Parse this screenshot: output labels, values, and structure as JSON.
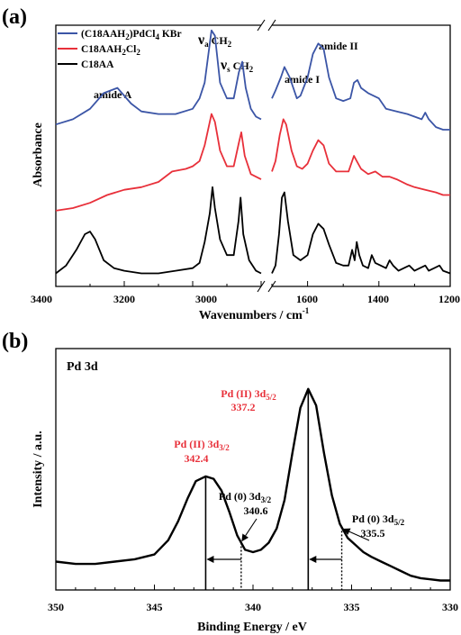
{
  "chart_data": [
    {
      "type": "line",
      "panel_label": "(a)",
      "xlabel": "Wavenumbers / cm",
      "xlabel_sup": "-1",
      "ylabel": "Absorbance",
      "x_segments": [
        [
          3400,
          2800
        ],
        [
          1700,
          1200
        ]
      ],
      "xticks_left": [
        "3400",
        "3200",
        "3000"
      ],
      "xticks_right": [
        "1600",
        "1400",
        "1200"
      ],
      "legend": [
        {
          "label_parts": [
            "(C18AAH",
            "2",
            ")PdCl",
            "4",
            " KBr"
          ],
          "color": "#3b55a6"
        },
        {
          "label_parts": [
            "C18AAH",
            "2",
            "Cl",
            "2",
            ""
          ],
          "color": "#e8303a"
        },
        {
          "label_parts": [
            "C18AA",
            "",
            "",
            "",
            ""
          ],
          "color": "#000000"
        }
      ],
      "annotations": {
        "amide_a": "amide A",
        "va_nu": "ν",
        "va_sub": "a",
        "va_group": " CH",
        "va_group_sub": "2",
        "vs_nu": "ν",
        "vs_sub": "s",
        "vs_group": " CH",
        "vs_group_sub": "2",
        "amide_1": "amide I",
        "amide_2": "amide II"
      },
      "series": [
        {
          "name": "(C18AAH2)PdCl4 KBr",
          "color": "#3b55a6",
          "left": [
            [
              3400,
              0.62
            ],
            [
              3350,
              0.64
            ],
            [
              3300,
              0.68
            ],
            [
              3260,
              0.74
            ],
            [
              3220,
              0.76
            ],
            [
              3180,
              0.7
            ],
            [
              3150,
              0.67
            ],
            [
              3100,
              0.66
            ],
            [
              3050,
              0.66
            ],
            [
              3000,
              0.68
            ],
            [
              2980,
              0.72
            ],
            [
              2965,
              0.78
            ],
            [
              2945,
              0.98
            ],
            [
              2935,
              0.96
            ],
            [
              2920,
              0.78
            ],
            [
              2900,
              0.72
            ],
            [
              2880,
              0.72
            ],
            [
              2865,
              0.82
            ],
            [
              2855,
              0.86
            ],
            [
              2845,
              0.76
            ],
            [
              2830,
              0.68
            ],
            [
              2815,
              0.65
            ],
            [
              2800,
              0.64
            ]
          ],
          "right": [
            [
              1700,
              0.72
            ],
            [
              1690,
              0.75
            ],
            [
              1675,
              0.8
            ],
            [
              1665,
              0.84
            ],
            [
              1650,
              0.8
            ],
            [
              1630,
              0.72
            ],
            [
              1620,
              0.73
            ],
            [
              1600,
              0.8
            ],
            [
              1585,
              0.89
            ],
            [
              1570,
              0.93
            ],
            [
              1555,
              0.91
            ],
            [
              1540,
              0.8
            ],
            [
              1520,
              0.72
            ],
            [
              1500,
              0.71
            ],
            [
              1480,
              0.72
            ],
            [
              1470,
              0.78
            ],
            [
              1460,
              0.79
            ],
            [
              1450,
              0.76
            ],
            [
              1430,
              0.74
            ],
            [
              1400,
              0.72
            ],
            [
              1380,
              0.68
            ],
            [
              1350,
              0.67
            ],
            [
              1320,
              0.66
            ],
            [
              1300,
              0.65
            ],
            [
              1280,
              0.64
            ],
            [
              1270,
              0.665
            ],
            [
              1260,
              0.64
            ],
            [
              1240,
              0.61
            ],
            [
              1220,
              0.6
            ],
            [
              1200,
              0.6
            ]
          ]
        },
        {
          "name": "C18AAH2Cl2",
          "color": "#e8303a",
          "left": [
            [
              3400,
              0.29
            ],
            [
              3350,
              0.3
            ],
            [
              3300,
              0.32
            ],
            [
              3250,
              0.35
            ],
            [
              3200,
              0.37
            ],
            [
              3150,
              0.38
            ],
            [
              3100,
              0.4
            ],
            [
              3060,
              0.44
            ],
            [
              3020,
              0.45
            ],
            [
              3000,
              0.46
            ],
            [
              2980,
              0.48
            ],
            [
              2965,
              0.54
            ],
            [
              2945,
              0.66
            ],
            [
              2935,
              0.63
            ],
            [
              2920,
              0.52
            ],
            [
              2900,
              0.46
            ],
            [
              2880,
              0.46
            ],
            [
              2865,
              0.55
            ],
            [
              2858,
              0.59
            ],
            [
              2848,
              0.5
            ],
            [
              2830,
              0.43
            ],
            [
              2815,
              0.42
            ],
            [
              2800,
              0.41
            ]
          ],
          "right": [
            [
              1700,
              0.44
            ],
            [
              1690,
              0.48
            ],
            [
              1678,
              0.58
            ],
            [
              1668,
              0.64
            ],
            [
              1660,
              0.62
            ],
            [
              1645,
              0.52
            ],
            [
              1630,
              0.46
            ],
            [
              1615,
              0.45
            ],
            [
              1600,
              0.47
            ],
            [
              1585,
              0.52
            ],
            [
              1570,
              0.56
            ],
            [
              1555,
              0.54
            ],
            [
              1540,
              0.47
            ],
            [
              1520,
              0.44
            ],
            [
              1500,
              0.44
            ],
            [
              1485,
              0.44
            ],
            [
              1470,
              0.5
            ],
            [
              1462,
              0.48
            ],
            [
              1450,
              0.45
            ],
            [
              1430,
              0.43
            ],
            [
              1410,
              0.44
            ],
            [
              1390,
              0.42
            ],
            [
              1370,
              0.42
            ],
            [
              1350,
              0.41
            ],
            [
              1320,
              0.39
            ],
            [
              1300,
              0.38
            ],
            [
              1270,
              0.37
            ],
            [
              1240,
              0.36
            ],
            [
              1220,
              0.35
            ],
            [
              1200,
              0.35
            ]
          ]
        },
        {
          "name": "C18AA",
          "color": "#000000",
          "left": [
            [
              3400,
              0.05
            ],
            [
              3370,
              0.08
            ],
            [
              3340,
              0.14
            ],
            [
              3315,
              0.2
            ],
            [
              3300,
              0.21
            ],
            [
              3285,
              0.18
            ],
            [
              3260,
              0.1
            ],
            [
              3230,
              0.07
            ],
            [
              3200,
              0.06
            ],
            [
              3150,
              0.05
            ],
            [
              3100,
              0.05
            ],
            [
              3050,
              0.06
            ],
            [
              3000,
              0.07
            ],
            [
              2980,
              0.09
            ],
            [
              2965,
              0.17
            ],
            [
              2950,
              0.28
            ],
            [
              2942,
              0.38
            ],
            [
              2935,
              0.3
            ],
            [
              2920,
              0.18
            ],
            [
              2900,
              0.12
            ],
            [
              2880,
              0.12
            ],
            [
              2866,
              0.25
            ],
            [
              2860,
              0.34
            ],
            [
              2852,
              0.2
            ],
            [
              2835,
              0.1
            ],
            [
              2815,
              0.06
            ],
            [
              2800,
              0.05
            ]
          ],
          "right": [
            [
              1700,
              0.05
            ],
            [
              1690,
              0.08
            ],
            [
              1680,
              0.2
            ],
            [
              1672,
              0.34
            ],
            [
              1665,
              0.36
            ],
            [
              1655,
              0.25
            ],
            [
              1640,
              0.12
            ],
            [
              1620,
              0.1
            ],
            [
              1600,
              0.12
            ],
            [
              1585,
              0.2
            ],
            [
              1570,
              0.24
            ],
            [
              1555,
              0.22
            ],
            [
              1540,
              0.16
            ],
            [
              1520,
              0.09
            ],
            [
              1500,
              0.08
            ],
            [
              1485,
              0.08
            ],
            [
              1475,
              0.14
            ],
            [
              1468,
              0.1
            ],
            [
              1462,
              0.17
            ],
            [
              1455,
              0.12
            ],
            [
              1445,
              0.08
            ],
            [
              1430,
              0.07
            ],
            [
              1420,
              0.12
            ],
            [
              1410,
              0.09
            ],
            [
              1395,
              0.08
            ],
            [
              1380,
              0.07
            ],
            [
              1370,
              0.1
            ],
            [
              1360,
              0.08
            ],
            [
              1345,
              0.06
            ],
            [
              1330,
              0.07
            ],
            [
              1315,
              0.08
            ],
            [
              1300,
              0.06
            ],
            [
              1285,
              0.07
            ],
            [
              1270,
              0.08
            ],
            [
              1260,
              0.06
            ],
            [
              1245,
              0.07
            ],
            [
              1230,
              0.08
            ],
            [
              1220,
              0.06
            ],
            [
              1200,
              0.05
            ]
          ]
        }
      ]
    },
    {
      "type": "line",
      "panel_label": "(b)",
      "inset_title": "Pd 3d",
      "xlabel": "Binding Energy / eV",
      "ylabel": "Intensity / a.u.",
      "xlim": [
        350,
        330
      ],
      "xticks": [
        350,
        345,
        340,
        335,
        330
      ],
      "series": [
        {
          "name": "Pd 3d",
          "color": "#000000",
          "points": [
            [
              350,
              0.12
            ],
            [
              349,
              0.11
            ],
            [
              348,
              0.11
            ],
            [
              347,
              0.12
            ],
            [
              346,
              0.13
            ],
            [
              345,
              0.15
            ],
            [
              344.3,
              0.21
            ],
            [
              343.8,
              0.29
            ],
            [
              343.3,
              0.39
            ],
            [
              342.9,
              0.46
            ],
            [
              342.4,
              0.48
            ],
            [
              342.0,
              0.47
            ],
            [
              341.6,
              0.42
            ],
            [
              341.2,
              0.33
            ],
            [
              340.8,
              0.23
            ],
            [
              340.4,
              0.17
            ],
            [
              340.0,
              0.16
            ],
            [
              339.6,
              0.17
            ],
            [
              339.2,
              0.2
            ],
            [
              338.8,
              0.26
            ],
            [
              338.4,
              0.38
            ],
            [
              338.0,
              0.58
            ],
            [
              337.6,
              0.77
            ],
            [
              337.2,
              0.85
            ],
            [
              336.8,
              0.78
            ],
            [
              336.4,
              0.58
            ],
            [
              336.0,
              0.4
            ],
            [
              335.6,
              0.28
            ],
            [
              335.2,
              0.22
            ],
            [
              334.8,
              0.19
            ],
            [
              334.4,
              0.16
            ],
            [
              334.0,
              0.14
            ],
            [
              333.5,
              0.12
            ],
            [
              333.0,
              0.1
            ],
            [
              332.5,
              0.08
            ],
            [
              332.0,
              0.06
            ],
            [
              331.5,
              0.05
            ],
            [
              331.0,
              0.045
            ],
            [
              330.5,
              0.04
            ],
            [
              330,
              0.04
            ]
          ]
        }
      ],
      "peaks": [
        {
          "name": "Pd (II) 3d3/2",
          "x": 342.4,
          "label_main": "Pd (II) 3d",
          "label_sub": "3/2",
          "value": "342.4",
          "color": "#e8303a"
        },
        {
          "name": "Pd (II) 3d5/2",
          "x": 337.2,
          "label_main": "Pd (II) 3d",
          "label_sub": "5/2",
          "value": "337.2",
          "color": "#e8303a"
        },
        {
          "name": "Pd (0) 3d3/2",
          "x": 340.6,
          "label_main": "Pd (0) 3d",
          "label_sub": "3/2",
          "value": "340.6",
          "color": "#000000"
        },
        {
          "name": "Pd (0) 3d5/2",
          "x": 335.5,
          "label_main": "Pd (0) 3d",
          "label_sub": "5/2",
          "value": "335.5",
          "color": "#000000"
        }
      ]
    }
  ]
}
